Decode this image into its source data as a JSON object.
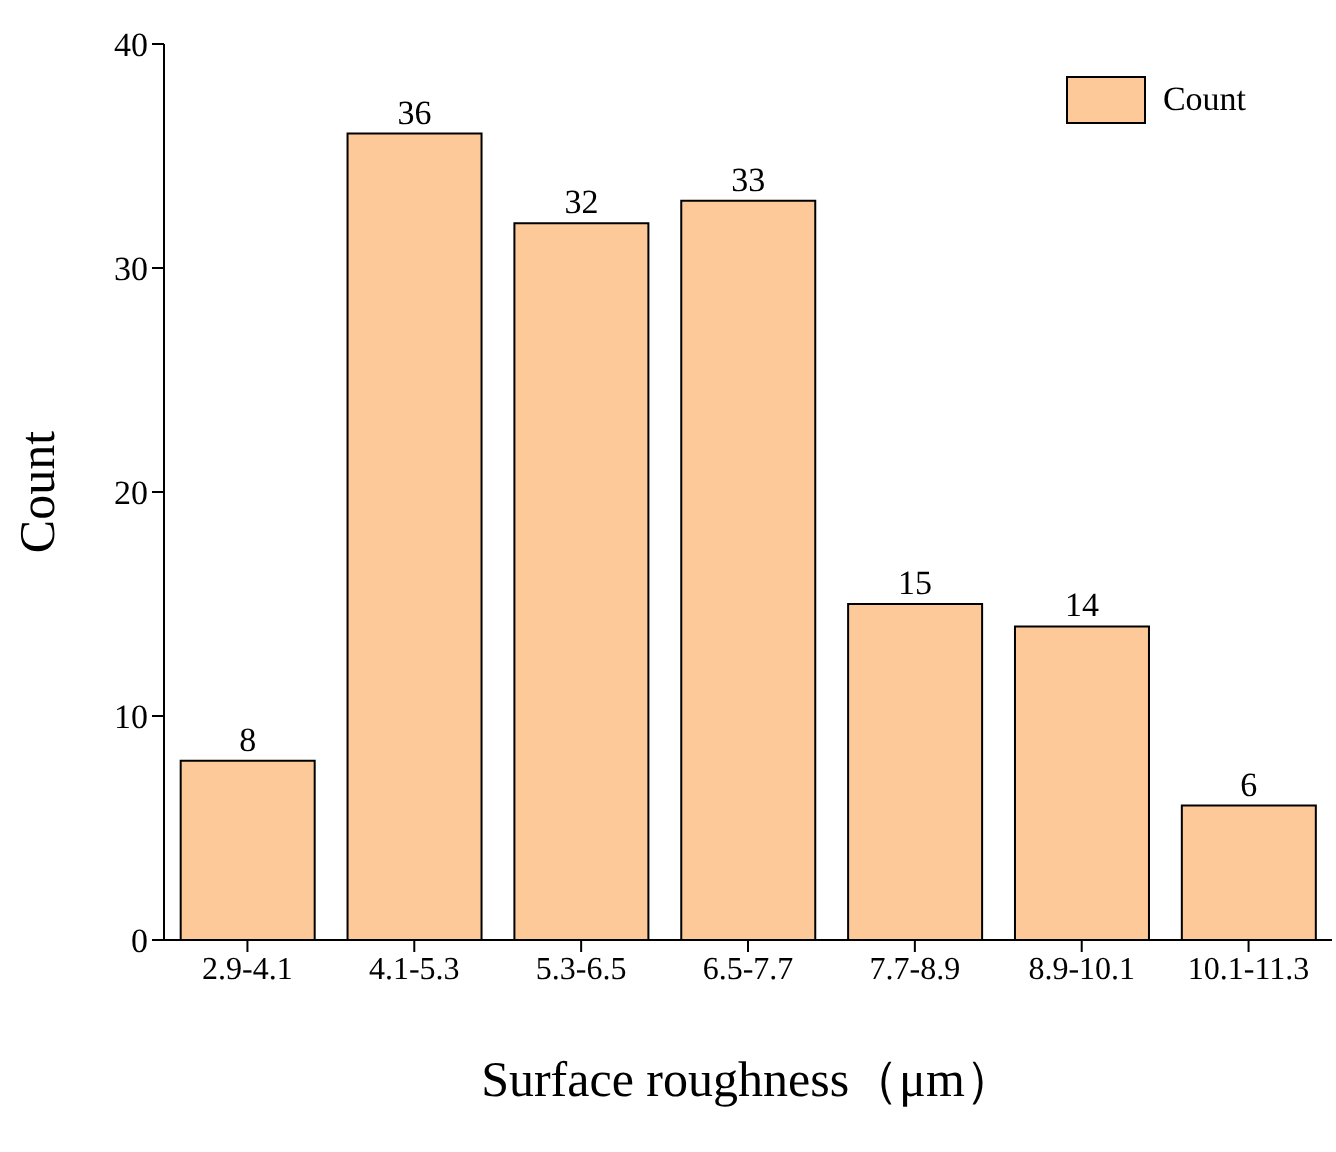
{
  "chart_data": {
    "type": "bar",
    "xlabel": "Surface roughness（μm）",
    "ylabel": "Count",
    "categories": [
      "2.9-4.1",
      "4.1-5.3",
      "5.3-6.5",
      "6.5-7.7",
      "7.7-8.9",
      "8.9-10.1",
      "10.1-11.3"
    ],
    "series": [
      {
        "name": "Count",
        "color": "#fdc998",
        "values": [
          8,
          36,
          32,
          33,
          15,
          14,
          6
        ]
      }
    ],
    "ylim": [
      0,
      40
    ],
    "yticks": [
      0,
      10,
      20,
      30,
      40
    ],
    "grid": false,
    "legend": "top right",
    "data_labels": true
  }
}
